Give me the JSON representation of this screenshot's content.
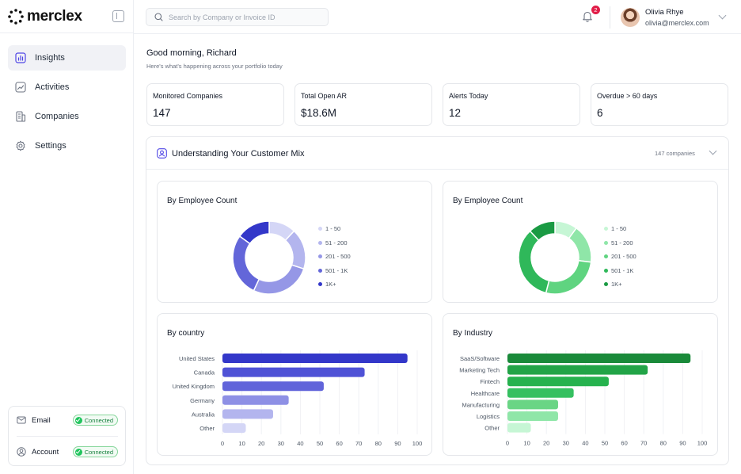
{
  "app": {
    "logo_text": "merclex"
  },
  "sidebar": {
    "items": [
      {
        "label": "Insights",
        "icon": "chart-bar-icon",
        "active": true
      },
      {
        "label": "Activities",
        "icon": "activity-icon",
        "active": false
      },
      {
        "label": "Companies",
        "icon": "building-icon",
        "active": false
      },
      {
        "label": "Settings",
        "icon": "gear-icon",
        "active": false
      }
    ],
    "connections": [
      {
        "label": "Email",
        "icon": "mail-icon",
        "status": "Connected"
      },
      {
        "label": "Account",
        "icon": "user-circle-icon",
        "status": "Connected"
      }
    ]
  },
  "header": {
    "search_placeholder": "Search by Company or Invoice ID",
    "notification_count": "2",
    "user": {
      "name": "Olivia Rhye",
      "email": "olivia@merclex.com"
    }
  },
  "greeting": {
    "title": "Good morning, Richard",
    "subtitle": "Here's what's happening across your portfolio today"
  },
  "stats": [
    {
      "label": "Monitored Companies",
      "value": "147"
    },
    {
      "label": "Total Open AR",
      "value": "$18.6M"
    },
    {
      "label": "Alerts Today",
      "value": "12"
    },
    {
      "label": "Overdue > 60 days",
      "value": "6"
    }
  ],
  "mix_panel": {
    "title": "Understanding Your Customer Mix",
    "count": "147 companies"
  },
  "colors": {
    "blue": [
      "#d4d6f6",
      "#b3b5ee",
      "#9597e6",
      "#6366d9",
      "#3337c9"
    ],
    "green": [
      "#c6f6d5",
      "#8fe6a8",
      "#5fd480",
      "#2fb85a",
      "#1a9a43"
    ],
    "blue_bars": [
      "#3337c9",
      "#4f52d6",
      "#6164da",
      "#8e90e5",
      "#b3b5ee",
      "#d4d6f6"
    ],
    "green_bars": [
      "#1a8a3a",
      "#22a447",
      "#26b24e",
      "#35c060",
      "#6ad585",
      "#8fe6a8",
      "#c6f6d5"
    ]
  },
  "chart_data": [
    {
      "type": "pie",
      "title": "By Employee Count",
      "categories": [
        "1 - 50",
        "51 - 200",
        "201 - 500",
        "501 - 1K",
        "1K+"
      ],
      "values": [
        12,
        18,
        27,
        28,
        15
      ]
    },
    {
      "type": "pie",
      "title": "By Employee Count",
      "categories": [
        "1 - 50",
        "51 - 200",
        "201 - 500",
        "501 - 1K",
        "1K+"
      ],
      "values": [
        10,
        17,
        27,
        34,
        12
      ]
    },
    {
      "type": "bar",
      "orientation": "horizontal",
      "title": "By country",
      "categories": [
        "United States",
        "Canada",
        "United Kingdom",
        "Germany",
        "Australia",
        "Other"
      ],
      "values": [
        95,
        73,
        52,
        34,
        26,
        12
      ],
      "xlim": [
        0,
        100
      ],
      "xticks": [
        "0",
        "10",
        "20",
        "30",
        "40",
        "50",
        "60",
        "70",
        "80",
        "90",
        "100"
      ]
    },
    {
      "type": "bar",
      "orientation": "horizontal",
      "title": "By Industry",
      "categories": [
        "SaaS/Software",
        "Marketing Tech",
        "Fintech",
        "Healthcare",
        "Manufacturing",
        "Logistics",
        "Other"
      ],
      "values": [
        94,
        72,
        52,
        34,
        26,
        26,
        12
      ],
      "xlim": [
        0,
        100
      ],
      "xticks": [
        "0",
        "10",
        "20",
        "30",
        "40",
        "50",
        "60",
        "70",
        "80",
        "90",
        "100"
      ]
    }
  ]
}
